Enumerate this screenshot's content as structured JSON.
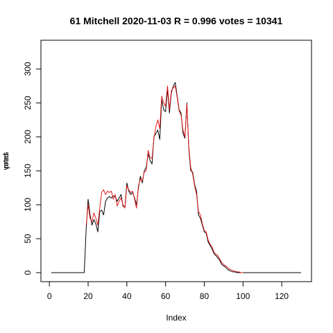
{
  "chart_data": {
    "type": "line",
    "title": "61 Mitchell 2020-11-03 R = 0.996 votes = 10341",
    "xlabel": "Index",
    "ylabel_overlaid": [
      "votes",
      "pred"
    ],
    "xlim": [
      1,
      130
    ],
    "ylim": [
      0,
      330
    ],
    "x_ticks": [
      0,
      20,
      40,
      60,
      80,
      100,
      120
    ],
    "y_ticks": [
      0,
      50,
      100,
      150,
      200,
      250,
      300
    ],
    "grid": false,
    "series": [
      {
        "color": "#000000",
        "values": [
          0,
          0,
          0,
          0,
          0,
          0,
          0,
          0,
          0,
          0,
          0,
          0,
          0,
          0,
          0,
          0,
          0,
          0,
          65,
          108,
          85,
          70,
          78,
          72,
          60,
          90,
          92,
          85,
          105,
          110,
          112,
          110,
          113,
          112,
          105,
          110,
          115,
          98,
          96,
          132,
          120,
          115,
          118,
          110,
          100,
          125,
          142,
          132,
          150,
          155,
          175,
          165,
          160,
          200,
          205,
          210,
          196,
          255,
          240,
          237,
          270,
          235,
          265,
          275,
          280,
          260,
          240,
          235,
          205,
          198,
          250,
          182,
          150,
          148,
          130,
          120,
          85,
          80,
          70,
          60,
          58,
          45,
          40,
          35,
          28,
          25,
          22,
          18,
          12,
          10,
          8,
          5,
          3,
          2,
          1,
          1,
          0,
          0,
          0,
          0,
          0,
          0,
          0,
          0,
          0,
          0,
          0,
          0,
          0,
          0,
          0,
          0,
          0,
          0,
          0,
          0,
          0,
          0,
          0,
          0,
          0,
          0,
          0,
          0,
          0,
          0,
          0,
          0,
          0,
          0
        ]
      },
      {
        "color": "#e31a1c",
        "values": [
          null,
          null,
          null,
          null,
          null,
          null,
          null,
          null,
          null,
          null,
          null,
          null,
          null,
          null,
          null,
          null,
          null,
          null,
          70,
          100,
          80,
          75,
          88,
          80,
          70,
          95,
          118,
          122,
          115,
          120,
          118,
          120,
          108,
          115,
          98,
          105,
          110,
          100,
          95,
          128,
          122,
          118,
          120,
          108,
          95,
          128,
          138,
          135,
          148,
          150,
          180,
          170,
          168,
          198,
          215,
          225,
          212,
          260,
          250,
          245,
          275,
          240,
          268,
          272,
          275,
          258,
          238,
          232,
          210,
          200,
          248,
          185,
          155,
          145,
          128,
          115,
          90,
          85,
          72,
          62,
          60,
          48,
          42,
          38,
          30,
          27,
          25,
          20,
          15,
          12,
          10,
          8,
          5,
          4,
          3,
          2,
          1,
          1,
          0,
          0,
          null,
          null,
          null,
          null,
          null,
          null,
          null,
          null,
          null,
          null,
          null,
          null,
          null,
          null,
          null,
          null,
          null,
          null,
          null,
          null,
          null,
          null,
          null,
          null,
          null,
          null,
          null,
          null,
          null,
          null
        ]
      }
    ]
  }
}
